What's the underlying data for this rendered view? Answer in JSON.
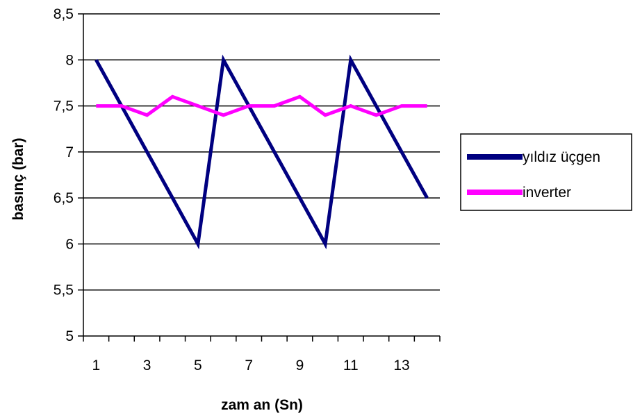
{
  "chart_data": {
    "type": "line",
    "xlabel": "zam an (Sn)",
    "ylabel": "basınç (bar)",
    "x": [
      1,
      2,
      3,
      4,
      5,
      6,
      7,
      8,
      9,
      10,
      11,
      12,
      13,
      14
    ],
    "x_tick_labels": [
      "1",
      "3",
      "5",
      "7",
      "9",
      "11",
      "13"
    ],
    "x_tick_values": [
      1,
      3,
      5,
      7,
      9,
      11,
      13
    ],
    "y_tick_labels": [
      "5",
      "5,5",
      "6",
      "6,5",
      "7",
      "7,5",
      "8",
      "8,5"
    ],
    "y_tick_values": [
      5,
      5.5,
      6,
      6.5,
      7,
      7.5,
      8,
      8.5
    ],
    "ylim": [
      5,
      8.5
    ],
    "grid": "horizontal",
    "legend_position": "right",
    "series": [
      {
        "name": "yıldız üçgen",
        "color": "#000080",
        "values": [
          8,
          7.5,
          7,
          6.5,
          6,
          8,
          7.5,
          7,
          6.5,
          6,
          8,
          7.5,
          7,
          6.5
        ]
      },
      {
        "name": "inverter",
        "color": "#ff00ff",
        "values": [
          7.5,
          7.5,
          7.4,
          7.6,
          7.5,
          7.4,
          7.5,
          7.5,
          7.6,
          7.4,
          7.5,
          7.4,
          7.5,
          7.5
        ]
      }
    ]
  }
}
